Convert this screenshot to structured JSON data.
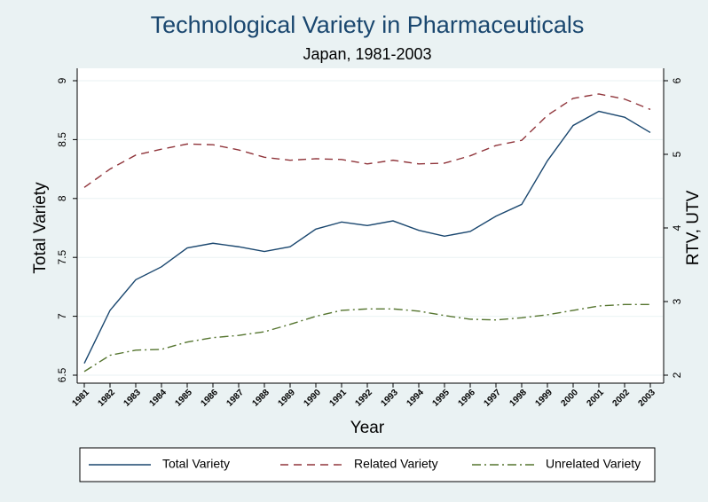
{
  "chart_data": {
    "type": "line",
    "title": "Technological Variety in Pharmaceuticals",
    "subtitle": "Japan, 1981-2003",
    "x_label": "Year",
    "y_label": "Total Variety",
    "y2_label": "RTV, UTV",
    "categories": [
      "1981",
      "1982",
      "1983",
      "1984",
      "1985",
      "1986",
      "1987",
      "1988",
      "1989",
      "1990",
      "1991",
      "1992",
      "1993",
      "1994",
      "1995",
      "1996",
      "1997",
      "1998",
      "1999",
      "2000",
      "2001",
      "2002",
      "2003"
    ],
    "ylim": [
      6.5,
      9
    ],
    "yticks": [
      6.5,
      7,
      7.5,
      8,
      8.5,
      9
    ],
    "y2lim": [
      2,
      6
    ],
    "y2ticks": [
      2,
      3,
      4,
      5,
      6
    ],
    "grid": true,
    "legend": "bottom",
    "series": [
      {
        "name": "Total Variety",
        "color": "#1a476f",
        "values": [
          6.6,
          7.05,
          7.31,
          7.42,
          7.58,
          7.62,
          7.59,
          7.55,
          7.59,
          7.74,
          7.8,
          7.77,
          7.81,
          7.73,
          7.68,
          7.72,
          7.85,
          7.95,
          8.32,
          8.62,
          8.74,
          8.69,
          8.56
        ]
      },
      {
        "name": "Related Variety",
        "color": "#90353b",
        "axis": "y2",
        "values": [
          4.55,
          4.8,
          4.99,
          5.07,
          5.14,
          5.13,
          5.06,
          4.96,
          4.92,
          4.94,
          4.93,
          4.87,
          4.92,
          4.87,
          4.88,
          4.98,
          5.12,
          5.19,
          5.53,
          5.76,
          5.82,
          5.75,
          5.61
        ]
      },
      {
        "name": "Unrelated Variety",
        "color": "#55752f",
        "axis": "y2",
        "values": [
          2.05,
          2.27,
          2.34,
          2.35,
          2.45,
          2.51,
          2.54,
          2.59,
          2.69,
          2.8,
          2.88,
          2.9,
          2.9,
          2.87,
          2.81,
          2.76,
          2.75,
          2.78,
          2.82,
          2.88,
          2.94,
          2.96,
          2.96
        ]
      }
    ]
  }
}
